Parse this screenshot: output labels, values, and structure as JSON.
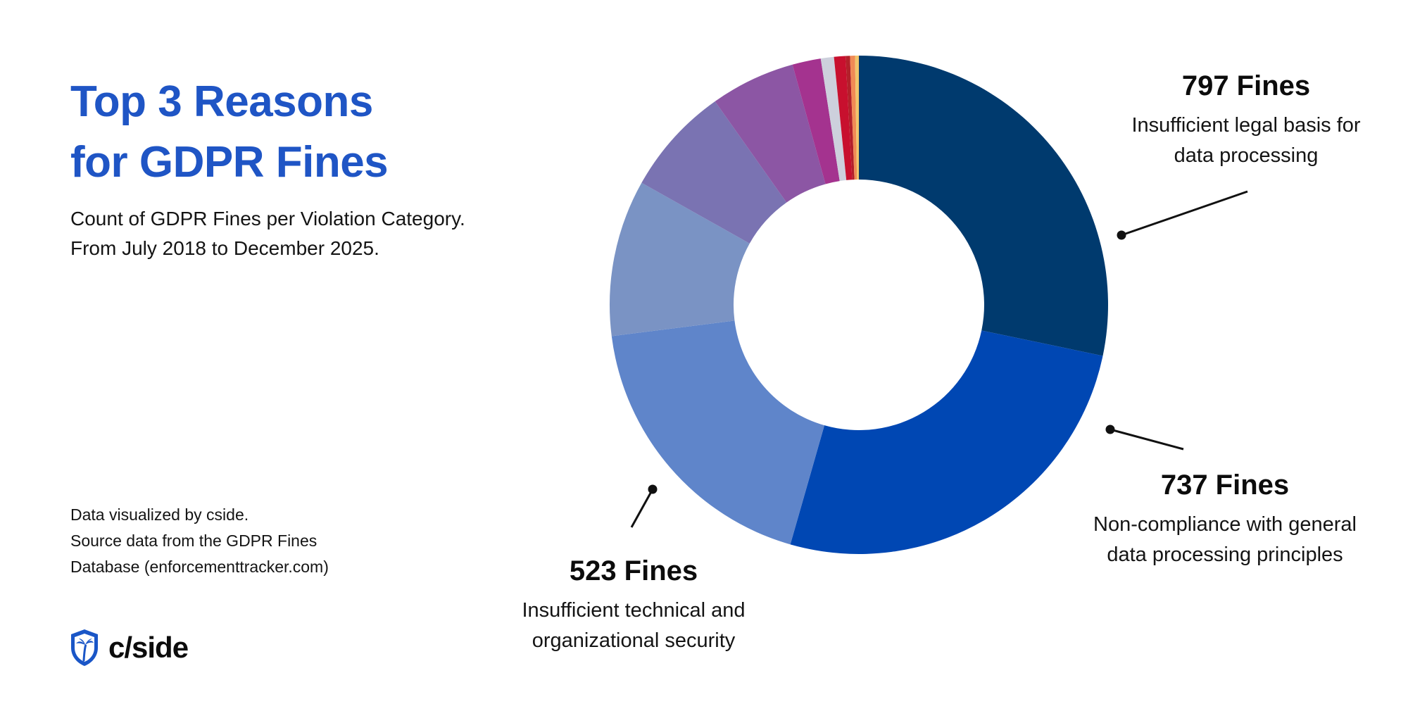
{
  "title_lines": [
    "Top 3 Reasons",
    "for GDPR Fines"
  ],
  "subtitle_lines": [
    "Count of GDPR Fines per Violation Category.",
    "From July 2018 to December 2025."
  ],
  "credits_lines": [
    "Data visualized by cside.",
    "Source data from the GDPR Fines",
    "Database (enforcementtracker.com)"
  ],
  "brand": {
    "name": "c/side",
    "logo_icon": "shield-palm-icon"
  },
  "callouts": [
    {
      "count": "797 Fines",
      "desc_lines": [
        "Insufficient legal basis for",
        "data processing"
      ]
    },
    {
      "count": "737 Fines",
      "desc_lines": [
        "Non-compliance with general",
        "data processing principles"
      ]
    },
    {
      "count": "523 Fines",
      "desc_lines": [
        "Insufficient technical and",
        "organizational security"
      ]
    }
  ],
  "colors": {
    "title": "#1f55c5",
    "brand": "#1a56c7"
  },
  "chart_data": {
    "type": "pie",
    "donut": true,
    "unit": "Fines",
    "series": [
      {
        "value": 797,
        "color": "#003a6e"
      },
      {
        "value": 737,
        "color": "#0047b3"
      },
      {
        "value": 523,
        "color": "#5f85ca"
      },
      {
        "value": 286,
        "color": "#7a93c4"
      },
      {
        "value": 199,
        "color": "#7a73b2"
      },
      {
        "value": 155,
        "color": "#8c56a4"
      },
      {
        "value": 52,
        "color": "#a4338f"
      },
      {
        "value": 24,
        "color": "#cdd0dc"
      },
      {
        "value": 21,
        "color": "#c8102e"
      },
      {
        "value": 8,
        "color": "#b3202a"
      },
      {
        "value": 9,
        "color": "#f08a55"
      },
      {
        "value": 7,
        "color": "#f2c46b"
      }
    ]
  }
}
